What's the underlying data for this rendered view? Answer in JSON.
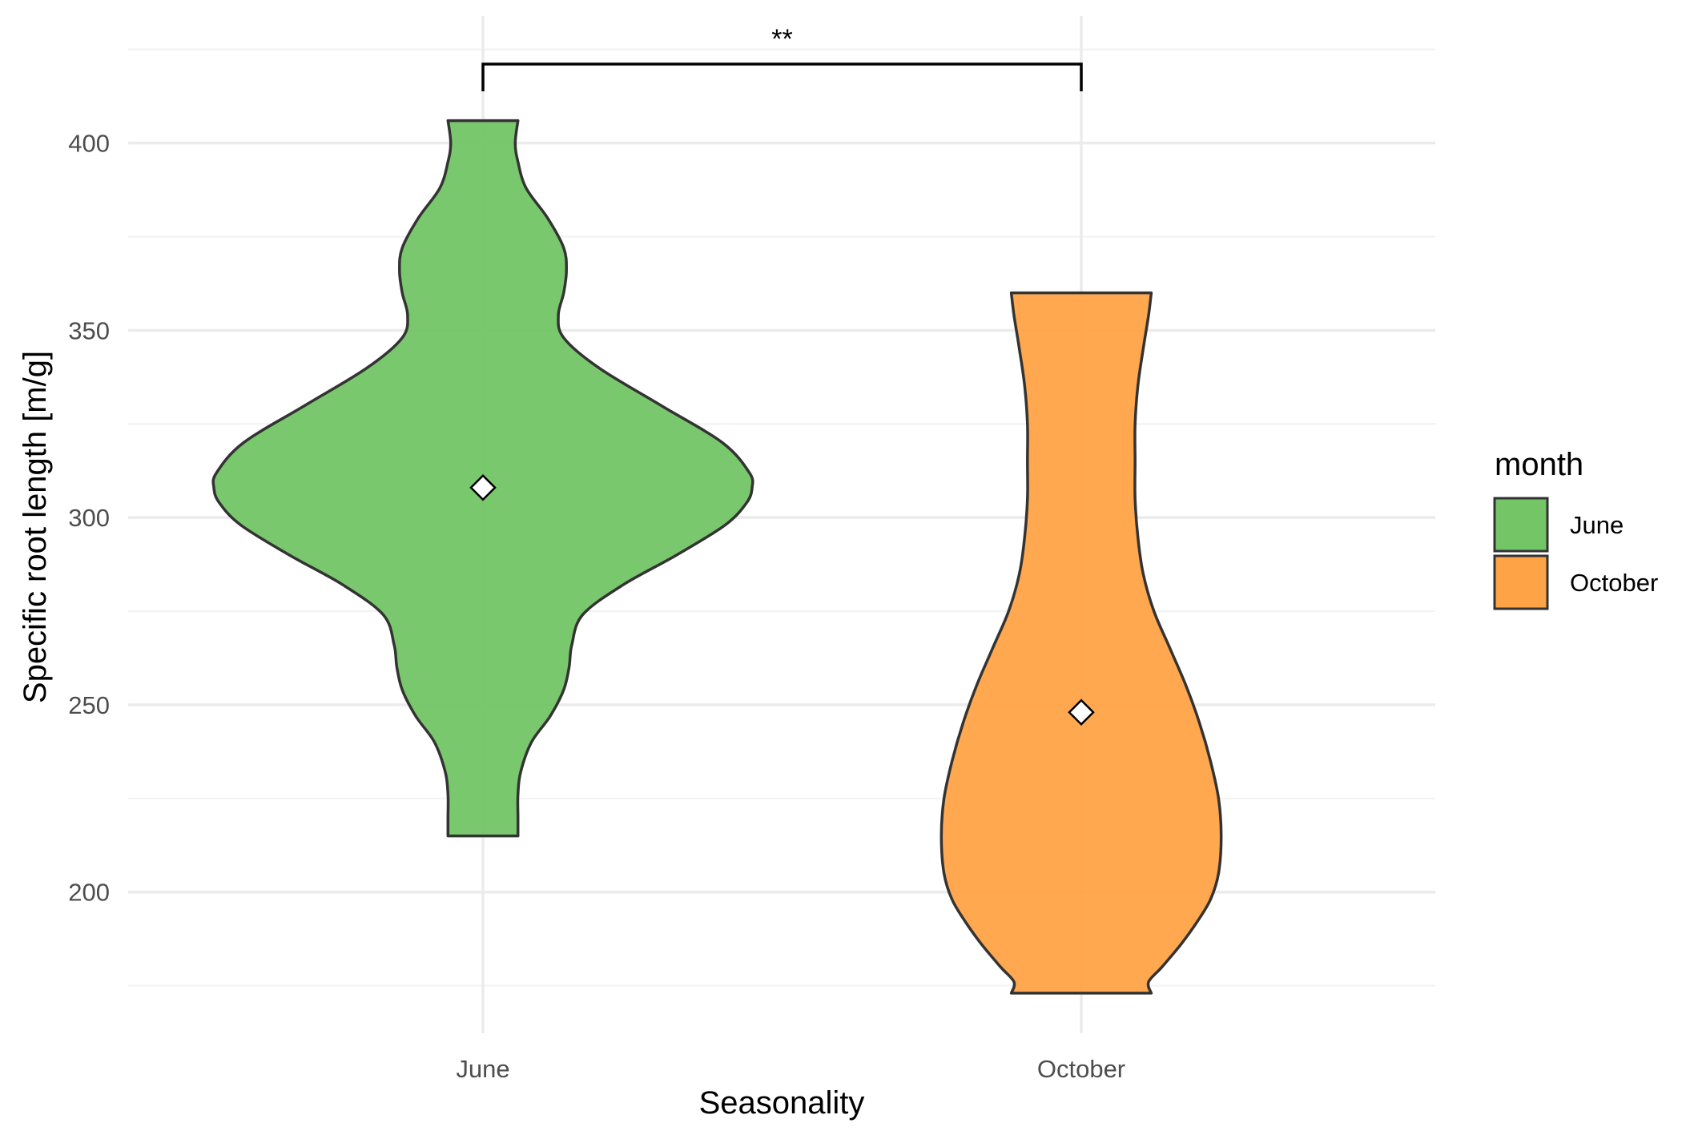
{
  "chart_data": {
    "type": "violin",
    "title": "",
    "xlabel": "Seasonality",
    "ylabel": "Specific root length [m/g]",
    "ylim": [
      166,
      425
    ],
    "yticks": [
      200,
      250,
      300,
      350,
      400
    ],
    "grid": true,
    "legend_position": "right",
    "legend": {
      "title": "month",
      "entries": [
        {
          "label": "June",
          "color": "#73C565"
        },
        {
          "label": "October",
          "color": "#FFA347"
        }
      ]
    },
    "categories": [
      "June",
      "October"
    ],
    "series": [
      {
        "name": "June",
        "color": "#73C565",
        "mean": 308,
        "min": 215,
        "max": 406,
        "density": [
          [
            406,
            0.13
          ],
          [
            400,
            0.12
          ],
          [
            395,
            0.13
          ],
          [
            388,
            0.16
          ],
          [
            380,
            0.24
          ],
          [
            372,
            0.3
          ],
          [
            366,
            0.31
          ],
          [
            360,
            0.3
          ],
          [
            354,
            0.28
          ],
          [
            348,
            0.3
          ],
          [
            340,
            0.43
          ],
          [
            330,
            0.66
          ],
          [
            320,
            0.89
          ],
          [
            312,
            0.99
          ],
          [
            308,
            1.0
          ],
          [
            304,
            0.98
          ],
          [
            298,
            0.9
          ],
          [
            290,
            0.72
          ],
          [
            282,
            0.52
          ],
          [
            274,
            0.37
          ],
          [
            266,
            0.33
          ],
          [
            260,
            0.32
          ],
          [
            254,
            0.3
          ],
          [
            247,
            0.25
          ],
          [
            240,
            0.18
          ],
          [
            232,
            0.14
          ],
          [
            226,
            0.13
          ],
          [
            220,
            0.13
          ],
          [
            215,
            0.13
          ]
        ]
      },
      {
        "name": "October",
        "color": "#FFA347",
        "mean": 248,
        "min": 173,
        "max": 360,
        "density": [
          [
            360,
            0.26
          ],
          [
            354,
            0.25
          ],
          [
            345,
            0.23
          ],
          [
            335,
            0.21
          ],
          [
            325,
            0.2
          ],
          [
            315,
            0.2
          ],
          [
            305,
            0.2
          ],
          [
            295,
            0.21
          ],
          [
            285,
            0.23
          ],
          [
            275,
            0.27
          ],
          [
            265,
            0.33
          ],
          [
            255,
            0.39
          ],
          [
            245,
            0.44
          ],
          [
            235,
            0.48
          ],
          [
            225,
            0.51
          ],
          [
            215,
            0.52
          ],
          [
            205,
            0.51
          ],
          [
            198,
            0.48
          ],
          [
            192,
            0.43
          ],
          [
            186,
            0.37
          ],
          [
            180,
            0.3
          ],
          [
            176,
            0.25
          ],
          [
            173,
            0.26
          ]
        ]
      }
    ],
    "annotations": [
      {
        "type": "significance-bracket",
        "between": [
          "June",
          "October"
        ],
        "label": "**"
      }
    ]
  }
}
